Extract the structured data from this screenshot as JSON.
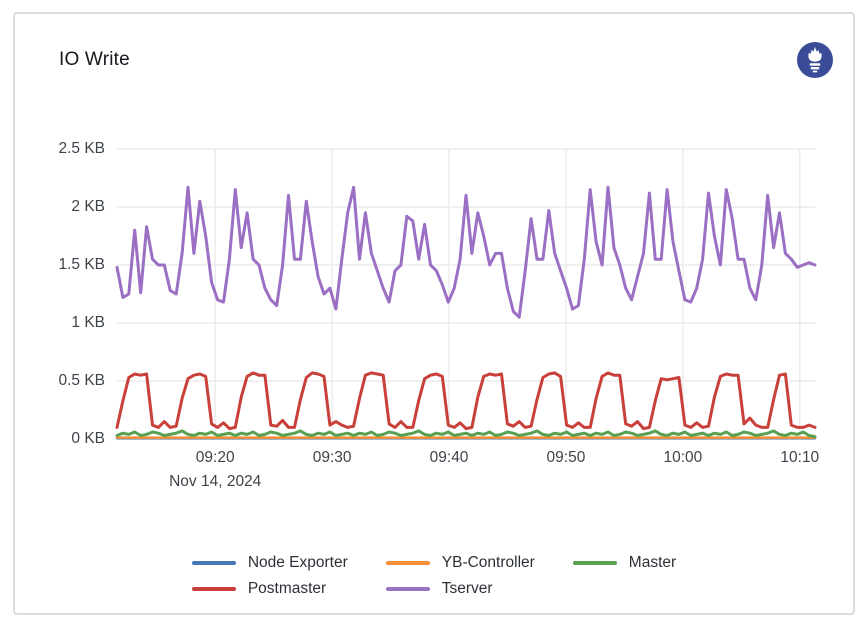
{
  "panel": {
    "title": "IO Write",
    "datasource_icon": "prometheus-logo",
    "datasource_icon_color": "#3a4b97"
  },
  "axes": {
    "date_label": "Nov 14, 2024"
  },
  "chart_data": {
    "type": "line",
    "title": "IO Write",
    "unit": "KB",
    "grid": true,
    "legend_position": "bottom",
    "ylim": [
      0,
      2.5
    ],
    "y_ticks": [
      {
        "label": "0 KB",
        "value": 0
      },
      {
        "label": "0.5 KB",
        "value": 0.5
      },
      {
        "label": "1 KB",
        "value": 1
      },
      {
        "label": "1.5 KB",
        "value": 1.5
      },
      {
        "label": "2 KB",
        "value": 2
      },
      {
        "label": "2.5 KB",
        "value": 2.5
      }
    ],
    "x_ticks": [
      {
        "label": "09:20",
        "sublabel": "Nov 14, 2024"
      },
      {
        "label": "09:30"
      },
      {
        "label": "09:40"
      },
      {
        "label": "09:50"
      },
      {
        "label": "10:00"
      },
      {
        "label": "10:10"
      }
    ],
    "time_start": "09:12",
    "time_end": "10:11",
    "sample_interval_seconds": 30,
    "series": [
      {
        "name": "Node Exporter",
        "color": "#4679b4",
        "constant_value": 0.006
      },
      {
        "name": "YB-Controller",
        "color": "#f78f35",
        "constant_value": 0.012
      },
      {
        "name": "Master",
        "color": "#57a151",
        "values": [
          0.03,
          0.05,
          0.04,
          0.06,
          0.03,
          0.04,
          0.06,
          0.05,
          0.03,
          0.04,
          0.05,
          0.07,
          0.04,
          0.03,
          0.05,
          0.04,
          0.06,
          0.03,
          0.04,
          0.05,
          0.03,
          0.05,
          0.04,
          0.06,
          0.03,
          0.04,
          0.06,
          0.05,
          0.03,
          0.04,
          0.05,
          0.07,
          0.04,
          0.03,
          0.05,
          0.04,
          0.06,
          0.03,
          0.04,
          0.05,
          0.03,
          0.05,
          0.04,
          0.06,
          0.03,
          0.04,
          0.06,
          0.05,
          0.03,
          0.04,
          0.05,
          0.07,
          0.04,
          0.03,
          0.05,
          0.04,
          0.06,
          0.03,
          0.04,
          0.05,
          0.03,
          0.05,
          0.04,
          0.06,
          0.03,
          0.04,
          0.06,
          0.05,
          0.03,
          0.04,
          0.05,
          0.07,
          0.04,
          0.03,
          0.05,
          0.04,
          0.06,
          0.03,
          0.04,
          0.05,
          0.03,
          0.05,
          0.04,
          0.06,
          0.03,
          0.04,
          0.06,
          0.05,
          0.03,
          0.04,
          0.05,
          0.07,
          0.04,
          0.03,
          0.05,
          0.04,
          0.06,
          0.03,
          0.04,
          0.05,
          0.03,
          0.05,
          0.04,
          0.06,
          0.03,
          0.04,
          0.06,
          0.05,
          0.03,
          0.04,
          0.05,
          0.07,
          0.04,
          0.03,
          0.05,
          0.04,
          0.06,
          0.03,
          0.02
        ]
      },
      {
        "name": "Postmaster",
        "color": "#c9403a",
        "values": [
          0.1,
          0.33,
          0.53,
          0.56,
          0.55,
          0.56,
          0.12,
          0.1,
          0.15,
          0.1,
          0.11,
          0.35,
          0.52,
          0.55,
          0.56,
          0.54,
          0.13,
          0.1,
          0.14,
          0.09,
          0.1,
          0.36,
          0.54,
          0.57,
          0.55,
          0.55,
          0.12,
          0.11,
          0.16,
          0.1,
          0.1,
          0.34,
          0.53,
          0.57,
          0.56,
          0.54,
          0.12,
          0.15,
          0.12,
          0.1,
          0.11,
          0.35,
          0.55,
          0.57,
          0.56,
          0.55,
          0.13,
          0.1,
          0.15,
          0.1,
          0.1,
          0.33,
          0.52,
          0.55,
          0.56,
          0.54,
          0.12,
          0.1,
          0.14,
          0.09,
          0.1,
          0.36,
          0.54,
          0.56,
          0.55,
          0.56,
          0.13,
          0.11,
          0.15,
          0.1,
          0.11,
          0.34,
          0.53,
          0.56,
          0.57,
          0.54,
          0.12,
          0.1,
          0.14,
          0.1,
          0.1,
          0.35,
          0.54,
          0.57,
          0.55,
          0.55,
          0.13,
          0.11,
          0.15,
          0.09,
          0.1,
          0.33,
          0.52,
          0.51,
          0.52,
          0.53,
          0.12,
          0.1,
          0.14,
          0.1,
          0.11,
          0.36,
          0.54,
          0.56,
          0.55,
          0.55,
          0.13,
          0.18,
          0.12,
          0.1,
          0.1,
          0.34,
          0.55,
          0.56,
          0.12,
          0.1,
          0.1,
          0.12,
          0.1
        ]
      },
      {
        "name": "Tserver",
        "color": "#9a6fc4",
        "values": [
          1.48,
          1.22,
          1.25,
          1.8,
          1.26,
          1.83,
          1.55,
          1.5,
          1.5,
          1.28,
          1.25,
          1.6,
          2.17,
          1.6,
          2.05,
          1.75,
          1.35,
          1.2,
          1.18,
          1.55,
          2.15,
          1.65,
          1.95,
          1.55,
          1.5,
          1.3,
          1.2,
          1.15,
          1.5,
          2.1,
          1.55,
          1.55,
          2.05,
          1.7,
          1.4,
          1.25,
          1.3,
          1.12,
          1.55,
          1.95,
          2.17,
          1.55,
          1.95,
          1.6,
          1.45,
          1.3,
          1.18,
          1.45,
          1.5,
          1.92,
          1.88,
          1.55,
          1.85,
          1.5,
          1.45,
          1.33,
          1.18,
          1.3,
          1.55,
          2.1,
          1.6,
          1.95,
          1.75,
          1.5,
          1.6,
          1.6,
          1.3,
          1.1,
          1.05,
          1.45,
          1.9,
          1.55,
          1.55,
          1.97,
          1.6,
          1.45,
          1.3,
          1.12,
          1.15,
          1.55,
          2.15,
          1.7,
          1.5,
          2.17,
          1.65,
          1.5,
          1.3,
          1.2,
          1.4,
          1.6,
          2.12,
          1.55,
          1.55,
          2.15,
          1.7,
          1.45,
          1.2,
          1.18,
          1.3,
          1.55,
          2.12,
          1.75,
          1.5,
          2.15,
          1.9,
          1.55,
          1.55,
          1.3,
          1.2,
          1.5,
          2.1,
          1.65,
          1.95,
          1.6,
          1.55,
          1.48,
          1.5,
          1.52,
          1.5
        ]
      }
    ]
  }
}
